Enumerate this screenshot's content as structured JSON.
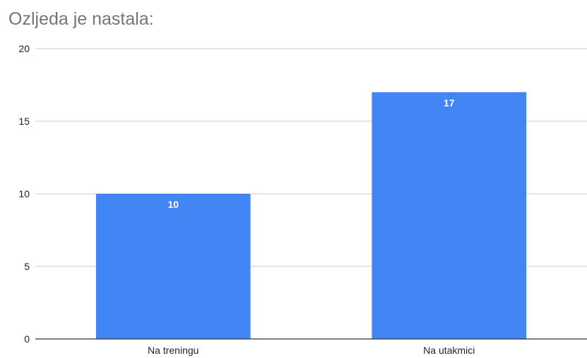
{
  "chart_data": {
    "type": "bar",
    "title": "Ozljeda je nastala:",
    "categories": [
      "Na treningu",
      "Na utakmici"
    ],
    "values": [
      10,
      17
    ],
    "xlabel": "",
    "ylabel": "",
    "ylim": [
      0,
      20
    ],
    "yticks": [
      0,
      5,
      10,
      15,
      20
    ],
    "grid": true,
    "legend": "none",
    "bar_color": "#4285f4",
    "data_labels": true
  }
}
